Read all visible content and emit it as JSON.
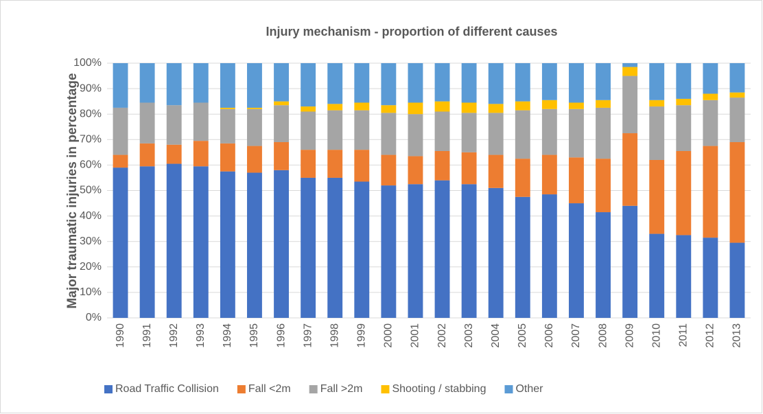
{
  "chart_data": {
    "type": "stacked_bar",
    "title": "Injury mechanism - proportion of different causes",
    "y_label": "Major traumatic injuries in percentage",
    "categories": [
      "1990",
      "1991",
      "1992",
      "1993",
      "1994",
      "1995",
      "1996",
      "1997",
      "1998",
      "1999",
      "2000",
      "2001",
      "2002",
      "2003",
      "2004",
      "2005",
      "2006",
      "2007",
      "2008",
      "2009",
      "2010",
      "2011",
      "2012",
      "2013"
    ],
    "series": [
      {
        "name": "Road Traffic Collision",
        "color": "#4472c4",
        "values": [
          59,
          59.5,
          60.5,
          59.5,
          57.5,
          57,
          58,
          55,
          55,
          53.5,
          52,
          52.5,
          54,
          52.5,
          51,
          47.5,
          48.5,
          45,
          41.5,
          44,
          33,
          32.5,
          31.5,
          29.5
        ]
      },
      {
        "name": "Fall <2m",
        "color": "#ed7d31",
        "values": [
          5,
          9,
          7.5,
          10,
          11,
          10.5,
          11,
          11,
          11,
          12.5,
          12,
          11,
          11.5,
          12.5,
          13,
          15,
          15.5,
          18,
          21,
          28.5,
          29,
          33,
          36,
          39.5
        ]
      },
      {
        "name": "Fall >2m",
        "color": "#a5a5a5",
        "values": [
          18.5,
          16,
          15.5,
          15,
          13.5,
          14.5,
          14.5,
          15,
          15.5,
          15.5,
          16.5,
          16.5,
          15.5,
          15.5,
          16.5,
          19,
          18,
          19,
          20,
          22.5,
          21,
          18,
          18,
          17.5
        ]
      },
      {
        "name": "Shooting / stabbing",
        "color": "#ffc000",
        "values": [
          0,
          0,
          0,
          0,
          0.5,
          0.5,
          1.5,
          2,
          2.5,
          3,
          3,
          4.5,
          4,
          4,
          3.5,
          3.5,
          3.5,
          2.5,
          3,
          3.5,
          2.5,
          2.5,
          2.5,
          2
        ]
      },
      {
        "name": "Other",
        "color": "#5b9bd5",
        "values": [
          17.5,
          15.5,
          16.5,
          15.5,
          17.5,
          17.5,
          15,
          17,
          16,
          15.5,
          16.5,
          15.5,
          15,
          15.5,
          16,
          15,
          14.5,
          15.5,
          14.5,
          1.5,
          14.5,
          14,
          12,
          11.5
        ]
      }
    ],
    "ylim": [
      0,
      100
    ],
    "yticks": [
      {
        "value": 0,
        "label": "0%"
      },
      {
        "value": 10,
        "label": "10%"
      },
      {
        "value": 20,
        "label": "20%"
      },
      {
        "value": 30,
        "label": "30%"
      },
      {
        "value": 40,
        "label": "40%"
      },
      {
        "value": 50,
        "label": "50%"
      },
      {
        "value": 60,
        "label": "60%"
      },
      {
        "value": 70,
        "label": "70%"
      },
      {
        "value": 80,
        "label": "80%"
      },
      {
        "value": 90,
        "label": "90%"
      },
      {
        "value": 100,
        "label": "100%"
      }
    ],
    "grid": true,
    "legend": "bottom"
  }
}
